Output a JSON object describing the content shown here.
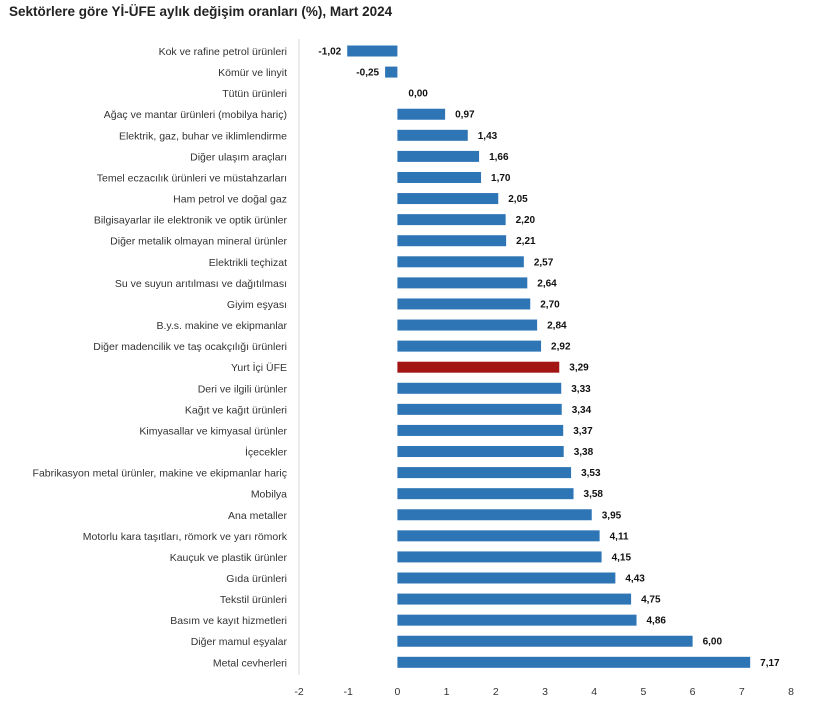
{
  "chart_data": {
    "type": "bar",
    "orientation": "horizontal",
    "title": "Sektörlere göre Yİ-ÜFE aylık değişim oranları (%), Mart 2024",
    "xlabel": "",
    "ylabel": "",
    "xlim": [
      -2,
      8
    ],
    "xticks": [
      "-2",
      "-1",
      "0",
      "1",
      "2",
      "3",
      "4",
      "5",
      "6",
      "7",
      "8"
    ],
    "grid": false,
    "colors": {
      "default": "#2e75b6",
      "highlight": "#a31515"
    },
    "highlight_category": "Yurt İçi ÜFE",
    "categories": [
      "Kok ve rafine petrol ürünleri",
      "Kömür ve linyit",
      "Tütün ürünleri",
      "Ağaç ve mantar ürünleri (mobilya hariç)",
      "Elektrik, gaz, buhar ve iklimlendirme",
      "Diğer ulaşım araçları",
      "Temel eczacılık ürünleri ve müstahzarları",
      "Ham petrol ve doğal gaz",
      "Bilgisayarlar ile elektronik ve optik ürünler",
      "Diğer metalik olmayan mineral ürünler",
      "Elektrikli teçhizat",
      "Su ve suyun arıtılması ve dağıtılması",
      "Giyim eşyası",
      "B.y.s. makine ve ekipmanlar",
      "Diğer madencilik ve taş ocakçılığı ürünleri",
      "Yurt İçi ÜFE",
      "Deri ve ilgili ürünler",
      "Kağıt ve kağıt ürünleri",
      "Kimyasallar ve kimyasal ürünler",
      "İçecekler",
      "Fabrikasyon metal ürünler, makine ve ekipmanlar hariç",
      "Mobilya",
      "Ana metaller",
      "Motorlu kara taşıtları, römork ve yarı römork",
      "Kauçuk ve plastik ürünler",
      "Gıda ürünleri",
      "Tekstil ürünleri",
      "Basım ve kayıt hizmetleri",
      "Diğer mamul eşyalar",
      "Metal cevherleri"
    ],
    "values": [
      -1.02,
      -0.25,
      0.0,
      0.97,
      1.43,
      1.66,
      1.7,
      2.05,
      2.2,
      2.21,
      2.57,
      2.64,
      2.7,
      2.84,
      2.92,
      3.29,
      3.33,
      3.34,
      3.37,
      3.38,
      3.53,
      3.58,
      3.95,
      4.11,
      4.15,
      4.43,
      4.75,
      4.86,
      6.0,
      7.17
    ],
    "value_labels": [
      "-1,02",
      "-0,25",
      "0,00",
      "0,97",
      "1,43",
      "1,66",
      "1,70",
      "2,05",
      "2,20",
      "2,21",
      "2,57",
      "2,64",
      "2,70",
      "2,84",
      "2,92",
      "3,29",
      "3,33",
      "3,34",
      "3,37",
      "3,38",
      "3,53",
      "3,58",
      "3,95",
      "4,11",
      "4,15",
      "4,43",
      "4,75",
      "4,86",
      "6,00",
      "7,17"
    ]
  }
}
